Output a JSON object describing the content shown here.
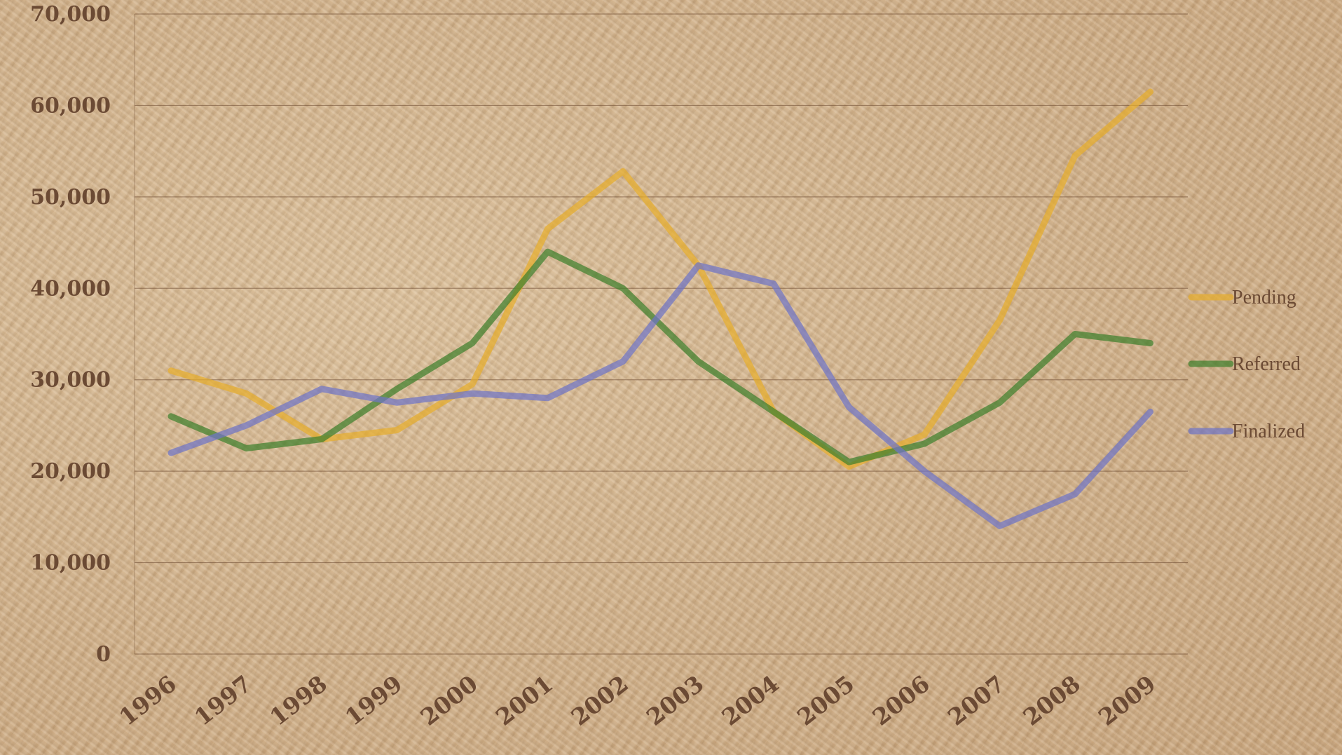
{
  "chart_data": {
    "type": "line",
    "title": "",
    "xlabel": "",
    "ylabel": "",
    "categories": [
      "1996",
      "1997",
      "1998",
      "1999",
      "2000",
      "2001",
      "2002",
      "2003",
      "2004",
      "2005",
      "2006",
      "2007",
      "2008",
      "2009"
    ],
    "ylim": [
      0,
      70000
    ],
    "yticks": [
      0,
      10000,
      20000,
      30000,
      40000,
      50000,
      60000,
      70000
    ],
    "ytick_labels": [
      "0",
      "10,000",
      "20,000",
      "30,000",
      "40,000",
      "50,000",
      "60,000",
      "70,000"
    ],
    "grid": true,
    "legend_position": "right",
    "series": [
      {
        "name": "Pending",
        "color": "#e6ad2c",
        "values": [
          31000,
          28500,
          23500,
          24500,
          29500,
          46500,
          52800,
          42500,
          26500,
          20500,
          24000,
          36500,
          54500,
          61500
        ]
      },
      {
        "name": "Referred",
        "color": "#3e7f2c",
        "values": [
          26000,
          22500,
          23500,
          29000,
          34000,
          44000,
          40000,
          32000,
          26500,
          21000,
          23000,
          27500,
          35000,
          34000
        ]
      },
      {
        "name": "Finalized",
        "color": "#6f74c6",
        "values": [
          22000,
          25000,
          29000,
          27500,
          28500,
          28000,
          32000,
          42500,
          40500,
          27000,
          20000,
          14000,
          17500,
          26500
        ]
      }
    ]
  }
}
